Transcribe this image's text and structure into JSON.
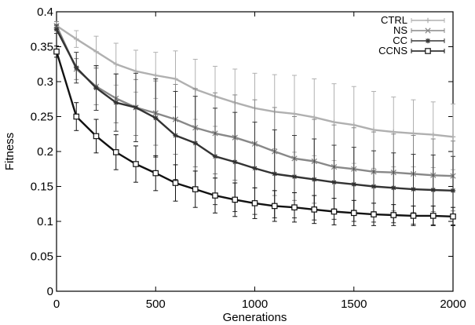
{
  "chart_data": {
    "type": "line",
    "title": "",
    "xlabel": "Generations",
    "ylabel": "Fitness",
    "xlim": [
      0,
      2000
    ],
    "ylim": [
      0,
      0.4
    ],
    "xticks": [
      0,
      500,
      1000,
      1500,
      2000
    ],
    "xtick_labels": [
      "0",
      "500",
      "1000",
      "1500",
      "2000"
    ],
    "yticks": [
      0,
      0.05,
      0.1,
      0.15,
      0.2,
      0.25,
      0.3,
      0.35,
      0.4
    ],
    "ytick_labels": [
      "0",
      "0.05",
      "0.1",
      "0.15",
      "0.2",
      "0.25",
      "0.3",
      "0.35",
      "0.4"
    ],
    "grid": false,
    "legend_position": "top-right",
    "x": [
      0,
      100,
      200,
      300,
      400,
      500,
      600,
      700,
      800,
      900,
      1000,
      1100,
      1200,
      1300,
      1400,
      1500,
      1600,
      1700,
      1800,
      1900,
      2000
    ],
    "series": [
      {
        "name": "CTRL",
        "color": "#b0b0b0",
        "marker": "plus",
        "values": [
          0.38,
          0.361,
          0.343,
          0.325,
          0.315,
          0.309,
          0.304,
          0.289,
          0.279,
          0.27,
          0.262,
          0.257,
          0.254,
          0.249,
          0.242,
          0.238,
          0.231,
          0.228,
          0.226,
          0.224,
          0.221
        ],
        "errors": [
          0.006,
          0.012,
          0.022,
          0.03,
          0.03,
          0.033,
          0.04,
          0.043,
          0.043,
          0.048,
          0.05,
          0.053,
          0.055,
          0.055,
          0.055,
          0.055,
          0.055,
          0.05,
          0.048,
          0.047,
          0.047
        ]
      },
      {
        "name": "NS",
        "color": "#888888",
        "marker": "x",
        "values": [
          0.38,
          0.318,
          0.293,
          0.276,
          0.263,
          0.255,
          0.246,
          0.234,
          0.226,
          0.22,
          0.211,
          0.2,
          0.19,
          0.186,
          0.178,
          0.175,
          0.171,
          0.17,
          0.168,
          0.166,
          0.165
        ],
        "errors": [
          0.006,
          0.015,
          0.026,
          0.035,
          0.04,
          0.046,
          0.05,
          0.056,
          0.058,
          0.061,
          0.063,
          0.063,
          0.06,
          0.06,
          0.06,
          0.059,
          0.057,
          0.055,
          0.055,
          0.052,
          0.05
        ]
      },
      {
        "name": "CC",
        "color": "#333333",
        "marker": "star",
        "values": [
          0.375,
          0.32,
          0.291,
          0.27,
          0.263,
          0.248,
          0.223,
          0.212,
          0.193,
          0.185,
          0.176,
          0.168,
          0.164,
          0.16,
          0.156,
          0.153,
          0.15,
          0.148,
          0.146,
          0.145,
          0.144
        ],
        "errors": [
          0.006,
          0.022,
          0.032,
          0.041,
          0.049,
          0.056,
          0.063,
          0.067,
          0.069,
          0.071,
          0.066,
          0.063,
          0.059,
          0.058,
          0.053,
          0.053,
          0.051,
          0.05,
          0.05,
          0.05,
          0.049
        ]
      },
      {
        "name": "CCNS",
        "color": "#111111",
        "marker": "square",
        "values": [
          0.343,
          0.25,
          0.222,
          0.199,
          0.182,
          0.169,
          0.155,
          0.146,
          0.137,
          0.131,
          0.126,
          0.122,
          0.12,
          0.117,
          0.114,
          0.112,
          0.11,
          0.109,
          0.108,
          0.108,
          0.107
        ],
        "errors": [
          0.008,
          0.02,
          0.024,
          0.025,
          0.026,
          0.025,
          0.026,
          0.026,
          0.025,
          0.024,
          0.022,
          0.022,
          0.021,
          0.02,
          0.019,
          0.018,
          0.016,
          0.015,
          0.014,
          0.014,
          0.013
        ]
      }
    ]
  }
}
